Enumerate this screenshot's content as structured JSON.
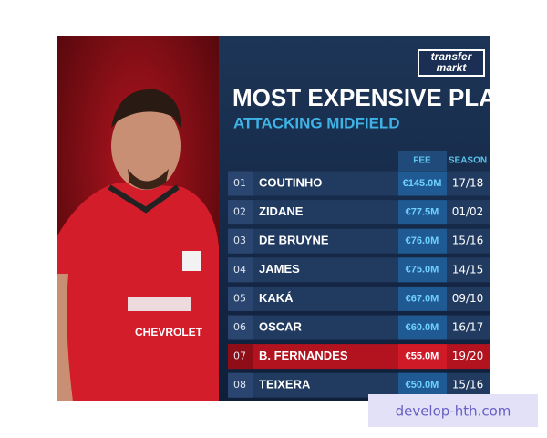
{
  "brand": {
    "line1": "transfer",
    "line2": "markt"
  },
  "title": "MOST EXPENSIVE PLAYERS",
  "subtitle": "ATTACKING MIDFIELD",
  "table": {
    "headers": {
      "fee": "FEE",
      "season": "SEASON"
    },
    "rows": [
      {
        "rank": "01",
        "name": "COUTINHO",
        "fee": "€145.0M",
        "season": "17/18"
      },
      {
        "rank": "02",
        "name": "ZIDANE",
        "fee": "€77.5M",
        "season": "01/02"
      },
      {
        "rank": "03",
        "name": "DE BRUYNE",
        "fee": "€76.0M",
        "season": "15/16"
      },
      {
        "rank": "04",
        "name": "JAMES",
        "fee": "€75.0M",
        "season": "14/15"
      },
      {
        "rank": "05",
        "name": "KAKÁ",
        "fee": "€67.0M",
        "season": "09/10"
      },
      {
        "rank": "06",
        "name": "OSCAR",
        "fee": "€60.0M",
        "season": "16/17"
      },
      {
        "rank": "07",
        "name": "B. FERNANDES",
        "fee": "€55.0M",
        "season": "19/20",
        "highlight": true
      },
      {
        "rank": "08",
        "name": "TEIXERA",
        "fee": "€50.0M",
        "season": "15/16"
      }
    ]
  },
  "shirt_sponsor": "CHEVROLET",
  "watermark": "develop-hth.com"
}
